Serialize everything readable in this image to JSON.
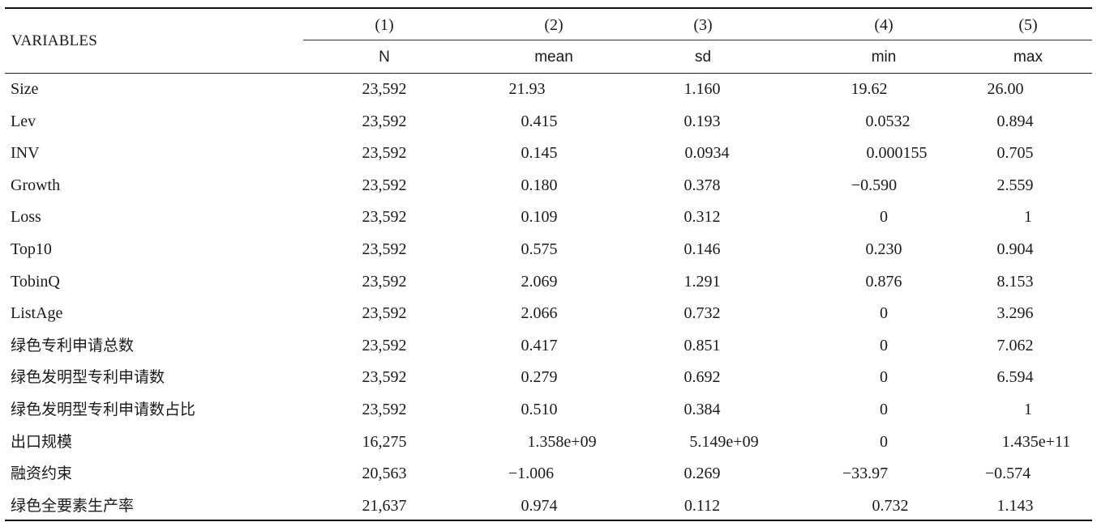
{
  "table": {
    "row_header_label": "VARIABLES",
    "columns": [
      {
        "number": "(1)",
        "name": "N"
      },
      {
        "number": "(2)",
        "name": "mean"
      },
      {
        "number": "(3)",
        "name": "sd"
      },
      {
        "number": "(4)",
        "name": "min"
      },
      {
        "number": "(5)",
        "name": "max"
      }
    ],
    "rows": [
      {
        "label": "Size",
        "values": [
          "23,592",
          "21.93",
          "1.160",
          "19.62",
          "26.00"
        ]
      },
      {
        "label": "Lev",
        "values": [
          "23,592",
          "0.415",
          "0.193",
          "0.0532",
          "0.894"
        ]
      },
      {
        "label": "INV",
        "values": [
          "23,592",
          "0.145",
          "0.0934",
          "0.000155",
          "0.705"
        ]
      },
      {
        "label": "Growth",
        "values": [
          "23,592",
          "0.180",
          "0.378",
          "−0.590",
          "2.559"
        ]
      },
      {
        "label": "Loss",
        "values": [
          "23,592",
          "0.109",
          "0.312",
          "0",
          "1"
        ]
      },
      {
        "label": "Top10",
        "values": [
          "23,592",
          "0.575",
          "0.146",
          "0.230",
          "0.904"
        ]
      },
      {
        "label": "TobinQ",
        "values": [
          "23,592",
          "2.069",
          "1.291",
          "0.876",
          "8.153"
        ]
      },
      {
        "label": "ListAge",
        "values": [
          "23,592",
          "2.066",
          "0.732",
          "0",
          "3.296"
        ]
      },
      {
        "label": "绿色专利申请总数",
        "values": [
          "23,592",
          "0.417",
          "0.851",
          "0",
          "7.062"
        ]
      },
      {
        "label": "绿色发明型专利申请数",
        "values": [
          "23,592",
          "0.279",
          "0.692",
          "0",
          "6.594"
        ]
      },
      {
        "label": "绿色发明型专利申请数占比",
        "values": [
          "23,592",
          "0.510",
          "0.384",
          "0",
          "1"
        ]
      },
      {
        "label": "出口规模",
        "values": [
          "16,275",
          "1.358e+09",
          "5.149e+09",
          "0",
          "1.435e+11"
        ]
      },
      {
        "label": "融资约束",
        "values": [
          "20,563",
          "−1.006",
          "0.269",
          "−33.97",
          "−0.574"
        ]
      },
      {
        "label": "绿色全要素生产率",
        "values": [
          "21,637",
          "0.974",
          "0.112",
          "0.732",
          "1.143"
        ]
      }
    ]
  }
}
